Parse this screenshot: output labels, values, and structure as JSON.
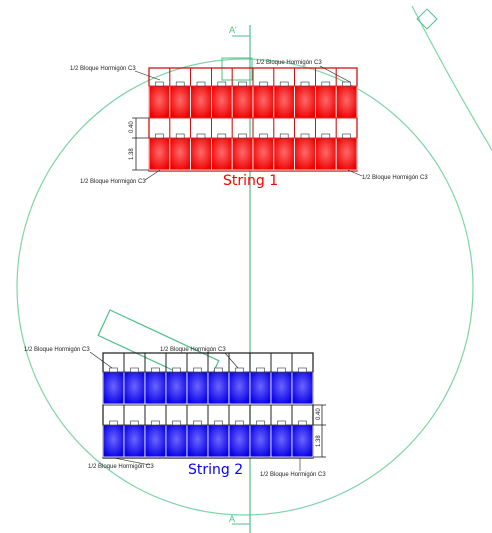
{
  "section_marks": {
    "top": "A'",
    "bottom": "A"
  },
  "labels": {
    "block": "1/2 Bloque Hormigón C3"
  },
  "string1": {
    "name": "String 1",
    "color": "#ff0000",
    "dim_a": "0.40",
    "dim_b": "1.38"
  },
  "string2": {
    "name": "String 2",
    "color": "#0a00ff",
    "dim_a": "0.40",
    "dim_b": "1.38"
  },
  "colors": {
    "circle": "#7fd4a8",
    "axis": "#4fbf8a",
    "outline": "#333333",
    "frame": "#222222"
  }
}
